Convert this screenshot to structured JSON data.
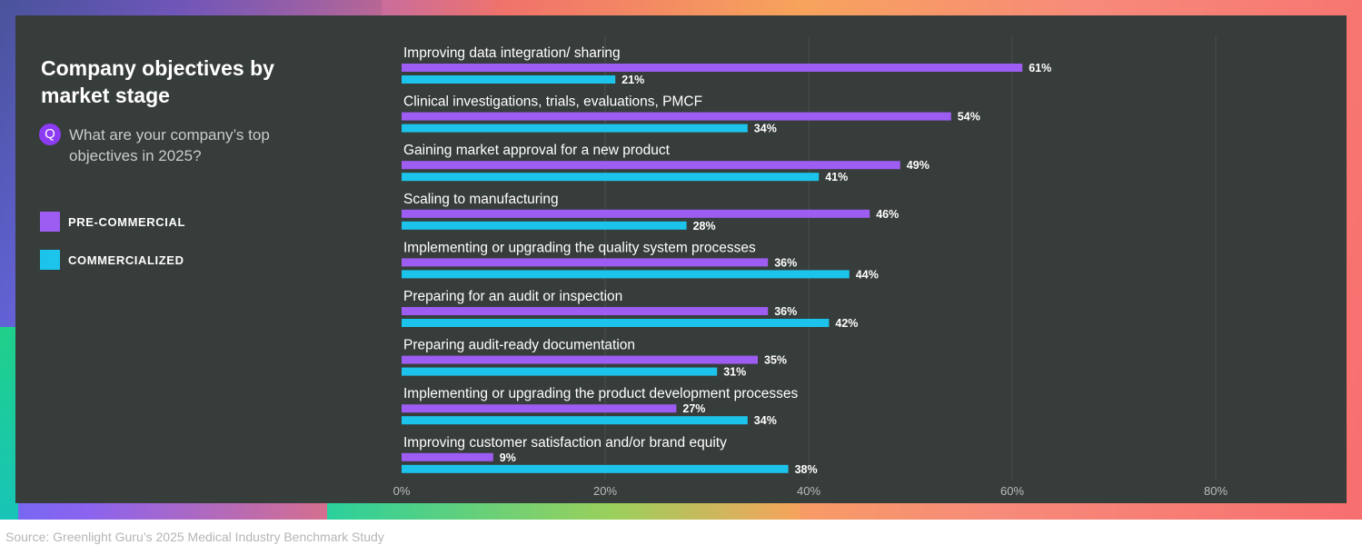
{
  "title": "Company objectives by market stage",
  "question_badge": "Q",
  "question": "What are your company’s top objectives in 2025?",
  "source": "Source: Greenlight Guru’s 2025 Medical Industry Benchmark Study",
  "colors": {
    "pre_commercial": "#9d5cf2",
    "commercialized": "#1cc4ec",
    "panel": "#373d3b",
    "grid": "#4a504e",
    "text": "#ffffff",
    "tick": "#b9bcbb"
  },
  "chart_data": {
    "type": "bar",
    "orientation": "horizontal",
    "categories": [
      "Improving data integration/ sharing",
      "Clinical investigations, trials, evaluations, PMCF",
      "Gaining market approval for a new product",
      "Scaling to manufacturing",
      "Implementing or upgrading the quality system processes",
      "Preparing for an audit or inspection",
      "Preparing audit-ready documentation",
      "Implementing or upgrading the product development processes",
      "Improving customer satisfaction and/or brand equity"
    ],
    "series": [
      {
        "name": "PRE-COMMERCIAL",
        "values": [
          61,
          54,
          49,
          46,
          36,
          36,
          35,
          27,
          9
        ]
      },
      {
        "name": "COMMERCIALIZED",
        "values": [
          21,
          34,
          41,
          28,
          44,
          42,
          31,
          34,
          38
        ]
      }
    ],
    "value_suffix": "%",
    "xlim": [
      0,
      80
    ],
    "xticks": [
      "0%",
      "20%",
      "40%",
      "60%",
      "80%"
    ],
    "xtick_values": [
      0,
      20,
      40,
      60,
      80
    ],
    "grid": true,
    "legend": "left"
  }
}
